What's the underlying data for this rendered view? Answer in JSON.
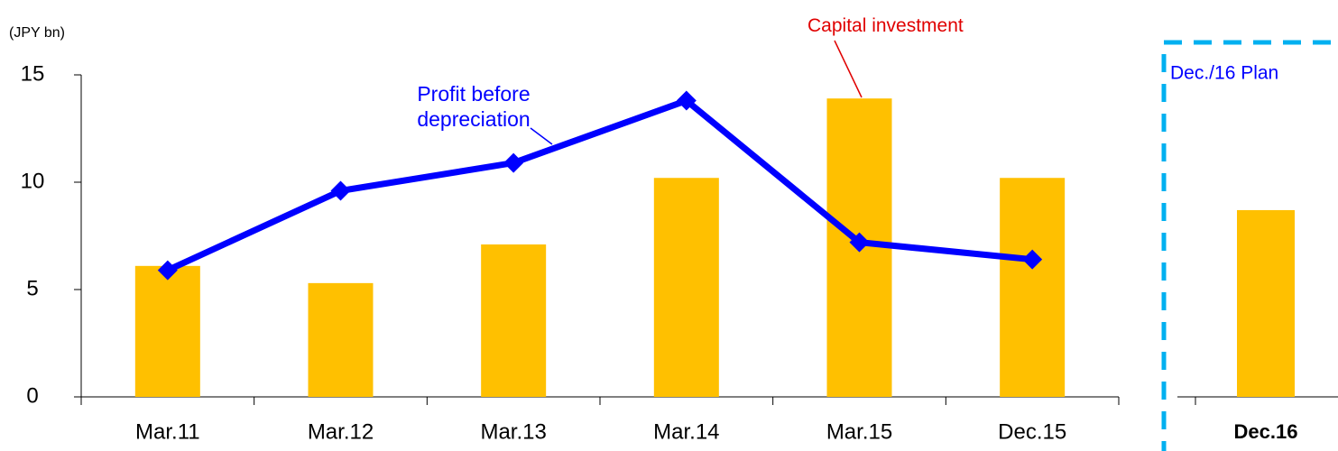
{
  "chart_data": [
    {
      "type": "bar",
      "y_unit": "(JPY bn)",
      "categories": [
        "Mar.11",
        "Mar.12",
        "Mar.13",
        "Mar.14",
        "Mar.15",
        "Dec.15"
      ],
      "series": [
        {
          "name": "Capital investment",
          "type": "bar",
          "color": "#ffc000",
          "values": [
            6.1,
            5.3,
            7.1,
            10.2,
            13.9,
            10.2
          ]
        },
        {
          "name": "Profit before depreciation",
          "type": "line",
          "color": "#0000ff",
          "values": [
            5.9,
            9.6,
            10.9,
            13.8,
            7.2,
            6.4
          ]
        }
      ],
      "ylim": [
        0,
        15
      ],
      "yticks": [
        0,
        5,
        10,
        15
      ]
    },
    {
      "type": "bar",
      "title": "Dec./16 Plan",
      "categories": [
        "Dec.16"
      ],
      "values": [
        8.7
      ],
      "color": "#ffc000",
      "ylim": [
        0,
        15
      ]
    }
  ]
}
